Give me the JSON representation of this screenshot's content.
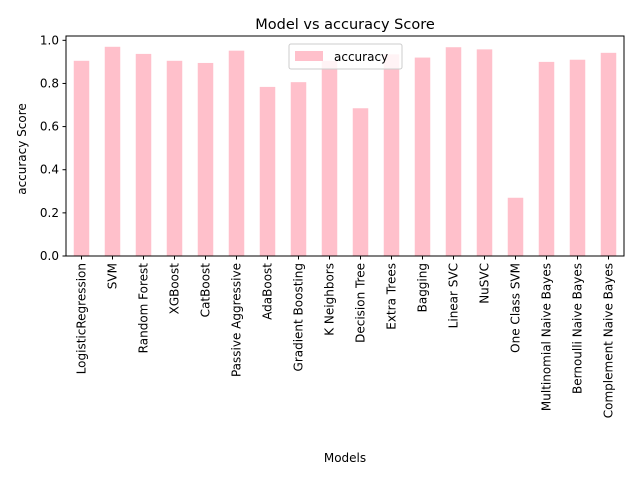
{
  "chart_data": {
    "type": "bar",
    "title": "Model vs accuracy Score",
    "xlabel": "Models",
    "ylabel": "accuracy Score",
    "ylim": [
      0,
      1.02
    ],
    "yticks": [
      "0.0",
      "0.2",
      "0.4",
      "0.6",
      "0.8",
      "1.0"
    ],
    "yticks_values": [
      0,
      0.2,
      0.4,
      0.6,
      0.8,
      1.0
    ],
    "legend_position": "top-center",
    "bar_color": "#ffc0cb",
    "categories": [
      "LogisticRegression",
      "SVM",
      "Random Forest",
      "XGBoost",
      "CatBoost",
      "Passive Aggressive",
      "AdaBoost",
      "Gradient Boosting",
      "K Neighbors",
      "Decision Tree",
      "Extra Trees",
      "Bagging",
      "Linear SVC",
      "NuSVC",
      "One Class SVM",
      "Multinomial Naive Bayes",
      "Bernoulli Naive Bayes",
      "Complement Naive Bayes"
    ],
    "series": [
      {
        "name": "accuracy",
        "values": [
          0.905,
          0.97,
          0.937,
          0.905,
          0.895,
          0.952,
          0.784,
          0.806,
          0.905,
          0.685,
          0.935,
          0.92,
          0.968,
          0.958,
          0.27,
          0.9,
          0.91,
          0.942
        ]
      }
    ]
  }
}
